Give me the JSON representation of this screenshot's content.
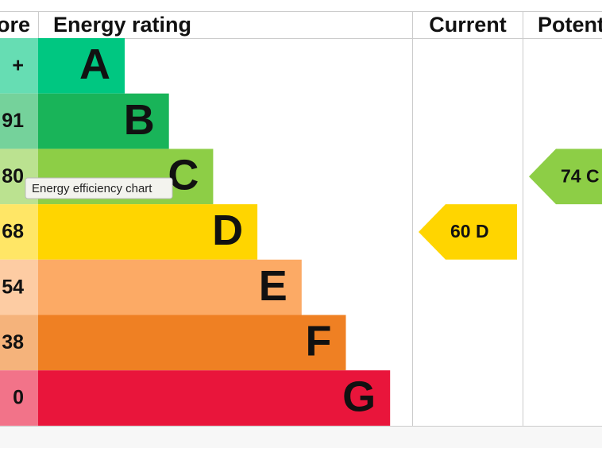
{
  "header": {
    "score": "ore",
    "rating": "Energy rating",
    "current": "Current",
    "potential": "Potent"
  },
  "rows": [
    {
      "score": "+",
      "letter": "A",
      "color": "#00c781",
      "score_color": "#66ddb3"
    },
    {
      "score": "91",
      "letter": "B",
      "color": "#19b459",
      "score_color": "#75d29b"
    },
    {
      "score": "80",
      "letter": "C",
      "color": "#8dce46",
      "score_color": "#bbe290"
    },
    {
      "score": "68",
      "letter": "D",
      "color": "#ffd500",
      "score_color": "#ffe666"
    },
    {
      "score": "54",
      "letter": "E",
      "color": "#fcaa65",
      "score_color": "#fdcca3"
    },
    {
      "score": "38",
      "letter": "F",
      "color": "#ef8023",
      "score_color": "#f5b37b"
    },
    {
      "score": "0",
      "letter": "G",
      "color": "#e9153b",
      "score_color": "#f27389"
    }
  ],
  "current": {
    "label": "60  D",
    "row": 3
  },
  "potential": {
    "label": "74  C",
    "row": 2
  },
  "tooltip": "Energy efficiency chart"
}
